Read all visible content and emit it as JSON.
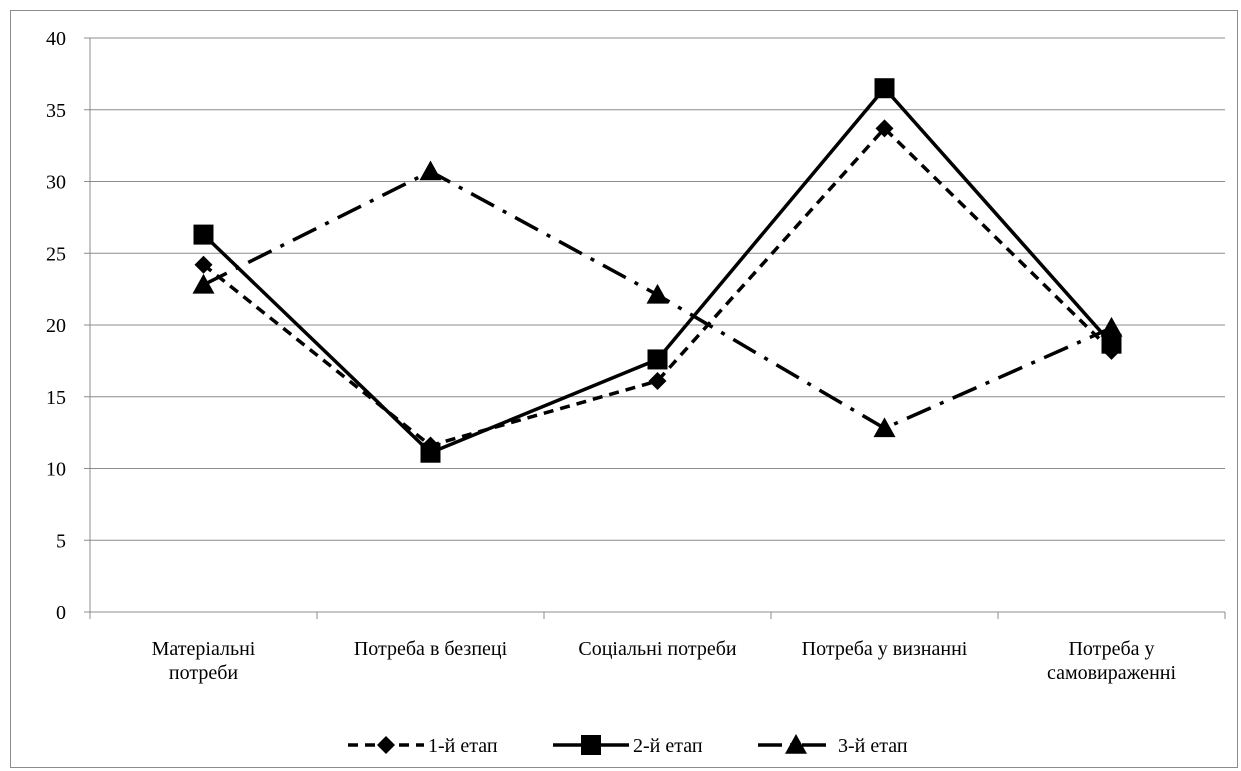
{
  "chart_data": {
    "type": "line",
    "categories": [
      [
        "Матеріальні",
        "потреби"
      ],
      [
        "Потреба в безпеці"
      ],
      [
        "Соціальні потреби"
      ],
      [
        "Потреба у визнанні"
      ],
      [
        "Потреба у",
        "самовираженні"
      ]
    ],
    "series": [
      {
        "name": "1-й етап",
        "values": [
          24.2,
          11.6,
          16.1,
          33.7,
          18.2
        ],
        "line_style": "dashed",
        "marker": "diamond"
      },
      {
        "name": "2-й етап",
        "values": [
          26.3,
          11.1,
          17.6,
          36.5,
          18.7
        ],
        "line_style": "solid",
        "marker": "square"
      },
      {
        "name": "3-й етап",
        "values": [
          22.8,
          30.7,
          22.1,
          12.8,
          19.8
        ],
        "line_style": "dash-dot",
        "marker": "triangle"
      }
    ],
    "ylim": [
      0,
      40
    ],
    "yticks": [
      "0",
      "5",
      "10",
      "15",
      "20",
      "25",
      "30",
      "35",
      "40"
    ],
    "grid": true,
    "legend_position": "bottom",
    "colors": {
      "lines": "#000000",
      "grid": "#8c8c8c"
    }
  }
}
